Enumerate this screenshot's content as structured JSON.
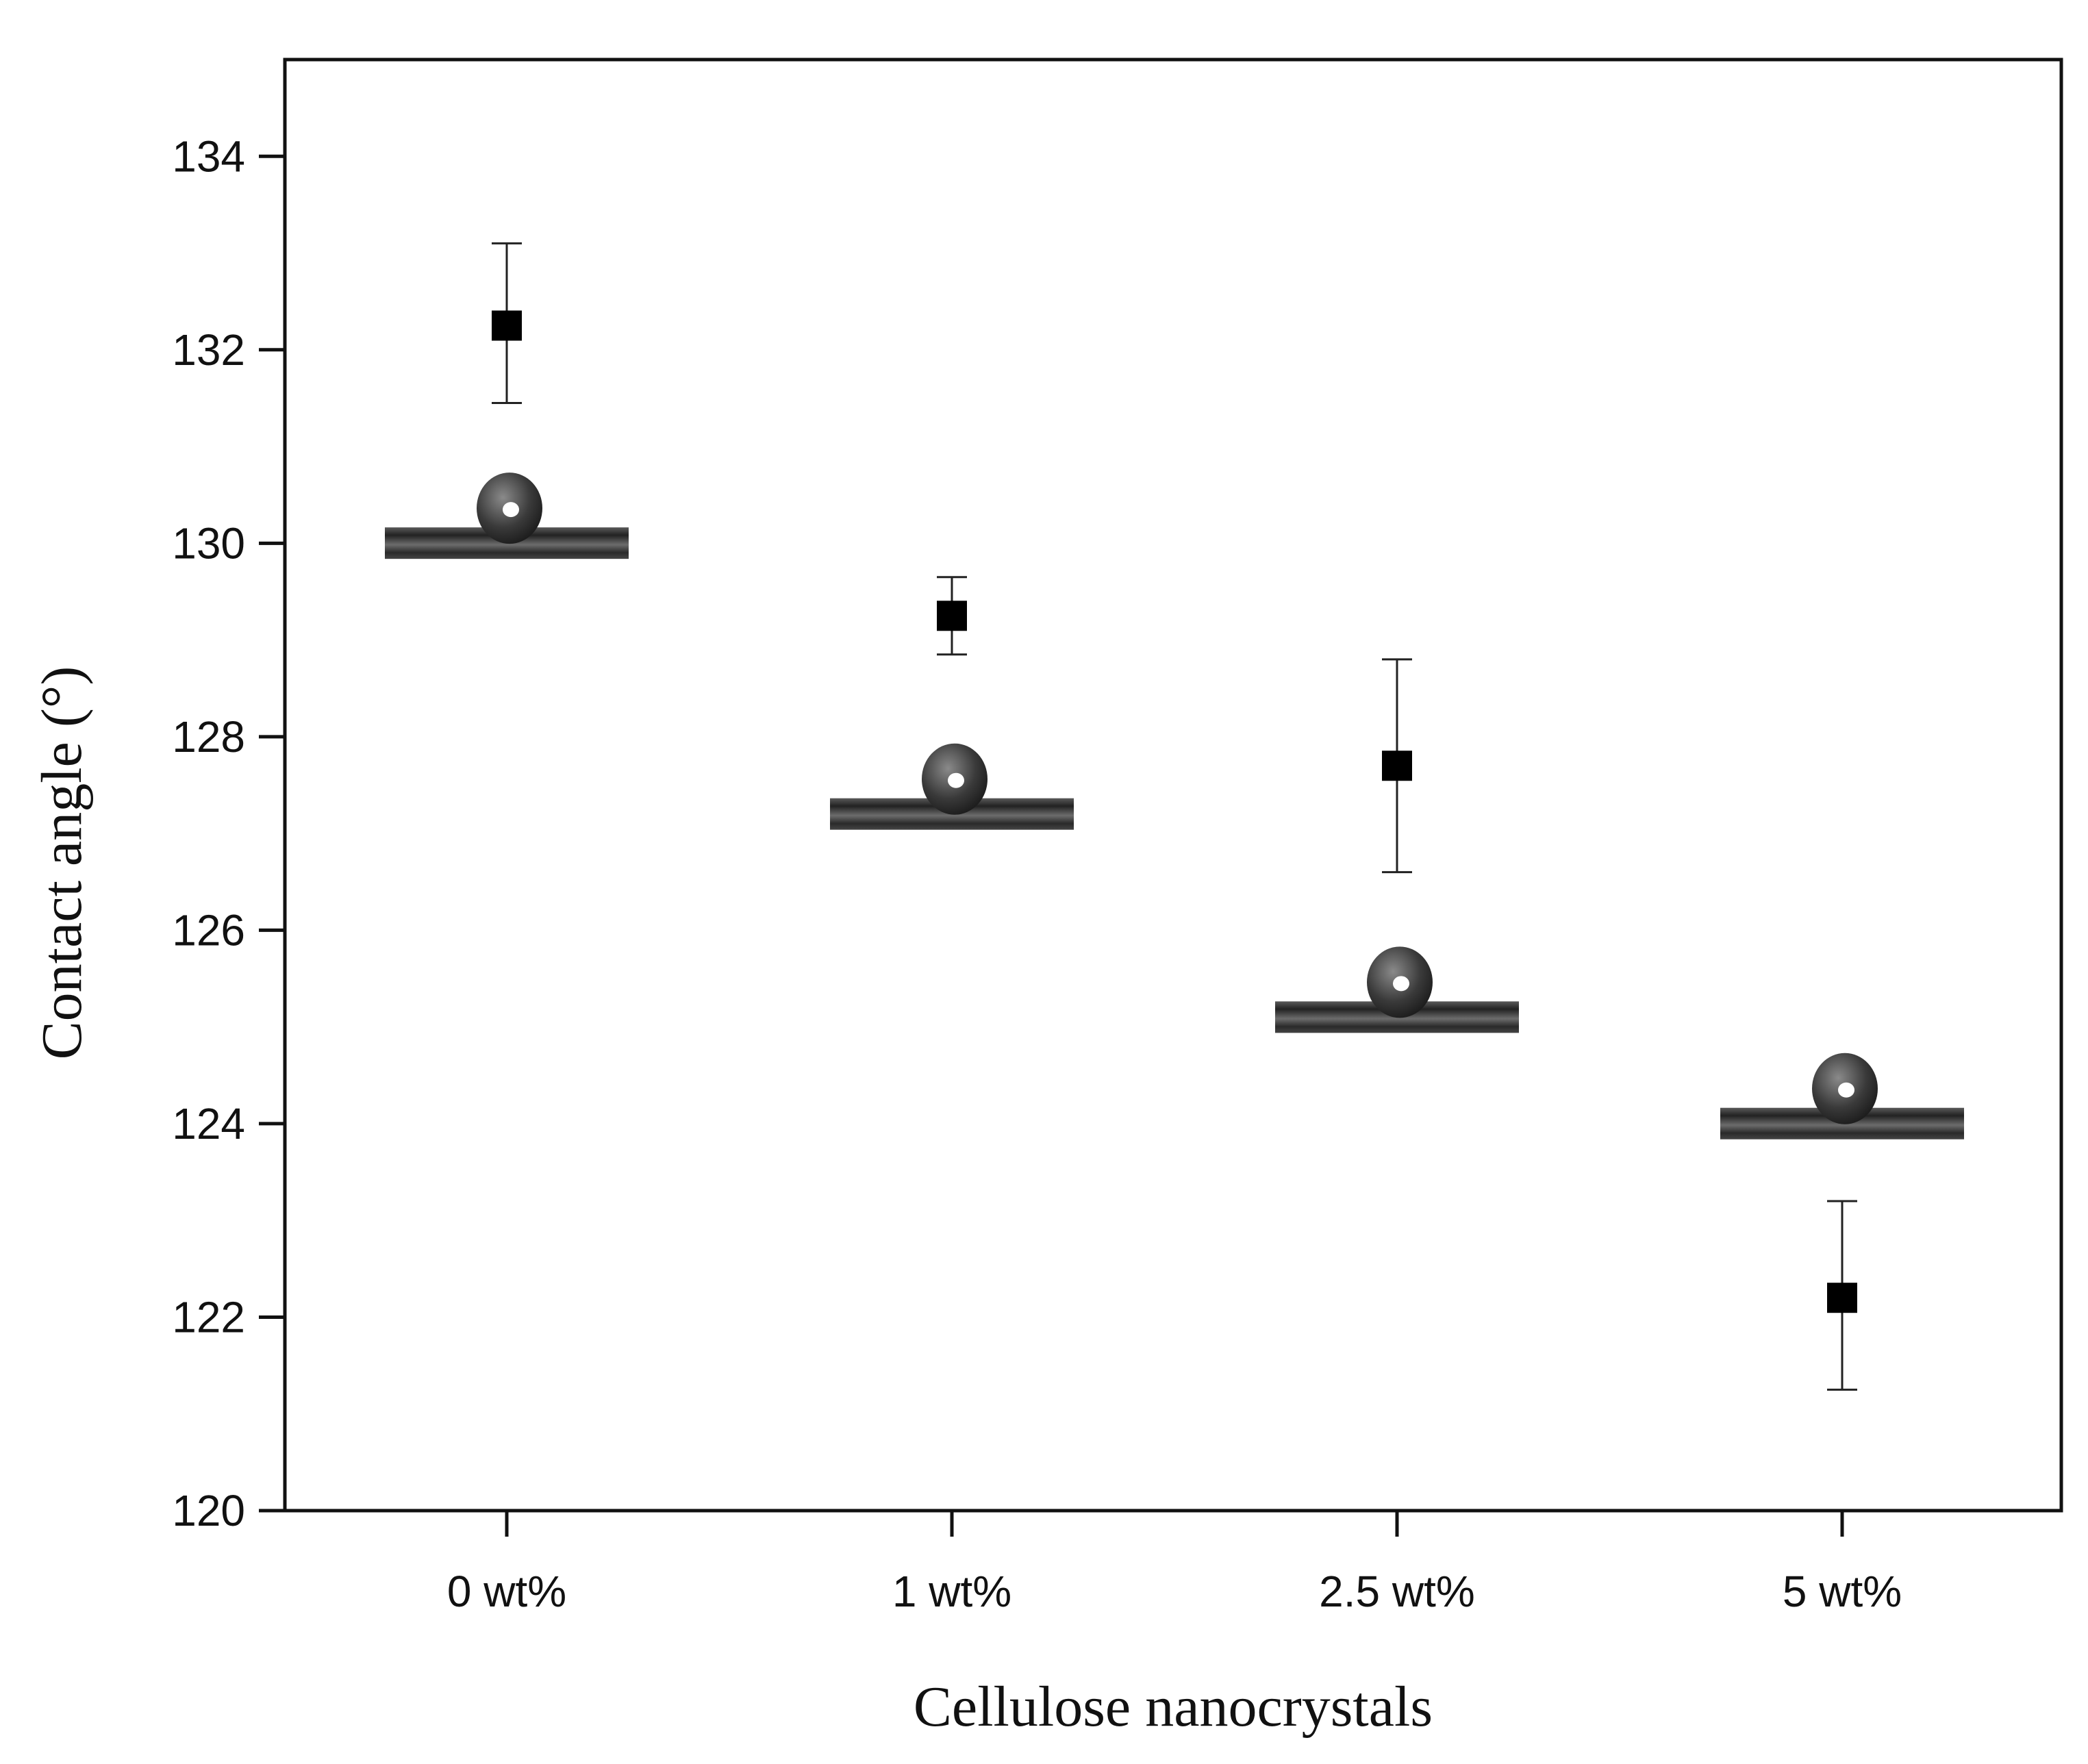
{
  "chart_data": {
    "type": "scatter",
    "title": "",
    "xlabel": "Cellulose nanocrystals",
    "ylabel": "Contact angle (°)",
    "categories": [
      "0 wt%",
      "1 wt%",
      "2.5 wt%",
      "5 wt%"
    ],
    "values": [
      132.25,
      129.25,
      127.7,
      122.2
    ],
    "error_low": [
      131.45,
      128.85,
      126.6,
      121.25
    ],
    "error_high": [
      133.1,
      129.65,
      128.8,
      123.2
    ],
    "ylim": [
      120,
      135
    ],
    "yticks": [
      120,
      122,
      124,
      126,
      128,
      130,
      132,
      134
    ],
    "ytick_labels": [
      "120",
      "122",
      "124",
      "126",
      "128",
      "130",
      "132",
      "134"
    ],
    "marker": "square",
    "grid": false,
    "insets": [
      {
        "category": "0 wt%",
        "description": "droplet image",
        "level": 130.15
      },
      {
        "category": "1 wt%",
        "description": "droplet image",
        "level": 127.35
      },
      {
        "category": "2.5 wt%",
        "description": "droplet image",
        "level": 125.25
      },
      {
        "category": "5 wt%",
        "description": "droplet image",
        "level": 124.15
      }
    ]
  }
}
